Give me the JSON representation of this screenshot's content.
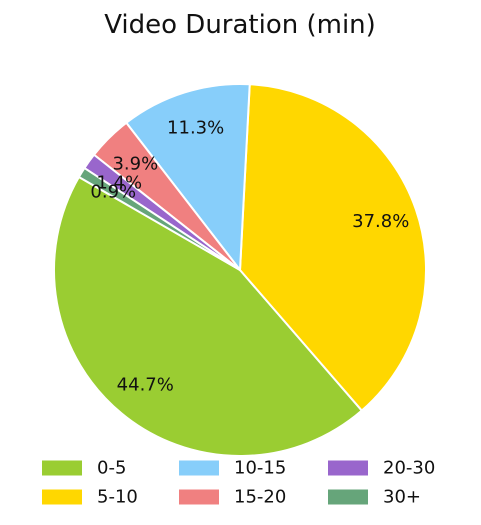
{
  "chart_data": {
    "type": "pie",
    "title": "Video Duration (min)",
    "categories": [
      "0-5",
      "5-10",
      "10-15",
      "15-20",
      "20-30",
      "30+"
    ],
    "values": [
      44.7,
      37.8,
      11.3,
      3.9,
      1.4,
      0.9
    ],
    "labels": [
      "44.7%",
      "37.8%",
      "11.3%",
      "3.9%",
      "1.4%",
      "0.9%"
    ],
    "colors": [
      "#9ACD32",
      "#FFD700",
      "#87CEFA",
      "#F08080",
      "#9966CC",
      "#66A57A"
    ],
    "start_angle_deg": 150,
    "direction": "counterclockwise",
    "legend_position": "bottom"
  }
}
